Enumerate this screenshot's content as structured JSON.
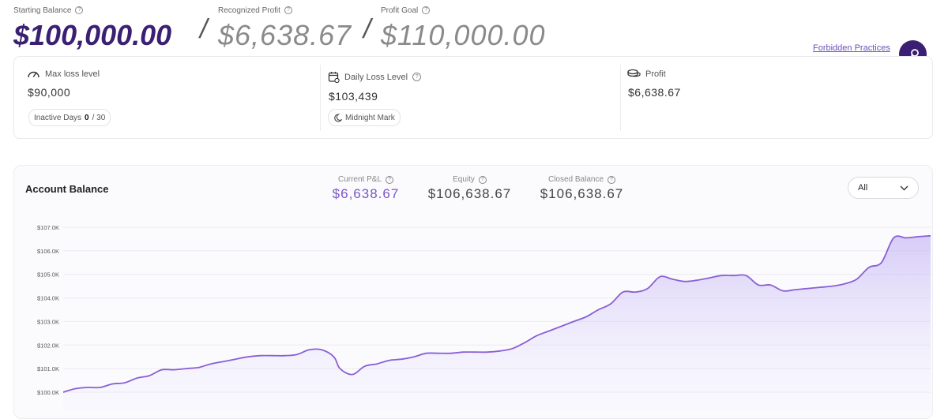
{
  "header": {
    "starting_balance": {
      "label": "Starting Balance",
      "value": "$100,000.00"
    },
    "recognized_profit": {
      "label": "Recognized Profit",
      "value": "$6,638.67"
    },
    "profit_goal": {
      "label": "Profit Goal",
      "value": "$110,000.00"
    },
    "separator": "/",
    "help_glyph": "?"
  },
  "links": {
    "forbidden_practices": "Forbidden Practices"
  },
  "cards": {
    "max_loss": {
      "label": "Max loss level",
      "value": "$90,000",
      "icon": "speedometer-icon"
    },
    "inactive": {
      "label": "Inactive Days",
      "current": "0",
      "total": "/ 30"
    },
    "daily_loss": {
      "label": "Daily Loss Level",
      "value": "$103,439",
      "icon": "calendar-icon"
    },
    "midnight": {
      "label": "Midnight Mark",
      "icon": "moon-icon"
    },
    "profit": {
      "label": "Profit",
      "value": "$6,638.67",
      "icon": "coins-icon"
    }
  },
  "panel": {
    "title": "Account Balance",
    "current_pl": {
      "label": "Current P&L",
      "value": "$6,638.67"
    },
    "equity": {
      "label": "Equity",
      "value": "$106,638.67"
    },
    "closed_balance": {
      "label": "Closed Balance",
      "value": "$106,638.67"
    },
    "range_select": {
      "value": "All"
    }
  },
  "colors": {
    "primary": "#3a1f72",
    "accent": "#7a55c7",
    "line": "#8a5fd4"
  },
  "chart_data": {
    "type": "area",
    "y_ticks": [
      "$100.0K",
      "$101.0K",
      "$102.0K",
      "$103.0K",
      "$104.0K",
      "$105.0K",
      "$106.0K",
      "$107.0K"
    ],
    "ylim": [
      100000,
      107000
    ],
    "grid": true,
    "series": [
      {
        "points": [
          [
            0,
            100000
          ],
          [
            2,
            100150
          ],
          [
            4,
            100200
          ],
          [
            6,
            100200
          ],
          [
            8,
            100350
          ],
          [
            10,
            100400
          ],
          [
            12,
            100600
          ],
          [
            14,
            100700
          ],
          [
            16,
            100950
          ],
          [
            18,
            100950
          ],
          [
            20,
            101000
          ],
          [
            22,
            101050
          ],
          [
            24,
            101200
          ],
          [
            26,
            101300
          ],
          [
            28,
            101400
          ],
          [
            30,
            101500
          ],
          [
            32,
            101550
          ],
          [
            34,
            101550
          ],
          [
            36,
            101550
          ],
          [
            38,
            101600
          ],
          [
            40,
            101800
          ],
          [
            42,
            101800
          ],
          [
            44,
            101500
          ],
          [
            45,
            101000
          ],
          [
            47,
            100750
          ],
          [
            49,
            101100
          ],
          [
            51,
            101200
          ],
          [
            53,
            101350
          ],
          [
            55,
            101400
          ],
          [
            57,
            101500
          ],
          [
            59,
            101650
          ],
          [
            61,
            101650
          ],
          [
            63,
            101650
          ],
          [
            65,
            101700
          ],
          [
            67,
            101700
          ],
          [
            69,
            101700
          ],
          [
            71,
            101750
          ],
          [
            73,
            101850
          ],
          [
            75,
            102100
          ],
          [
            77,
            102400
          ],
          [
            79,
            102600
          ],
          [
            81,
            102800
          ],
          [
            83,
            103000
          ],
          [
            85,
            103200
          ],
          [
            87,
            103500
          ],
          [
            89,
            103750
          ],
          [
            91,
            104250
          ],
          [
            93,
            104250
          ],
          [
            95,
            104400
          ],
          [
            97,
            104900
          ],
          [
            99,
            104800
          ],
          [
            101,
            104700
          ],
          [
            103,
            104750
          ],
          [
            105,
            104850
          ],
          [
            107,
            104950
          ],
          [
            109,
            104950
          ],
          [
            111,
            104950
          ],
          [
            113,
            104550
          ],
          [
            115,
            104550
          ],
          [
            117,
            104300
          ],
          [
            119,
            104350
          ],
          [
            121,
            104400
          ],
          [
            123,
            104450
          ],
          [
            125,
            104500
          ],
          [
            127,
            104600
          ],
          [
            129,
            104800
          ],
          [
            131,
            105300
          ],
          [
            133,
            105500
          ],
          [
            135,
            106550
          ],
          [
            137,
            106550
          ],
          [
            139,
            106600
          ],
          [
            141,
            106638
          ]
        ]
      }
    ]
  }
}
